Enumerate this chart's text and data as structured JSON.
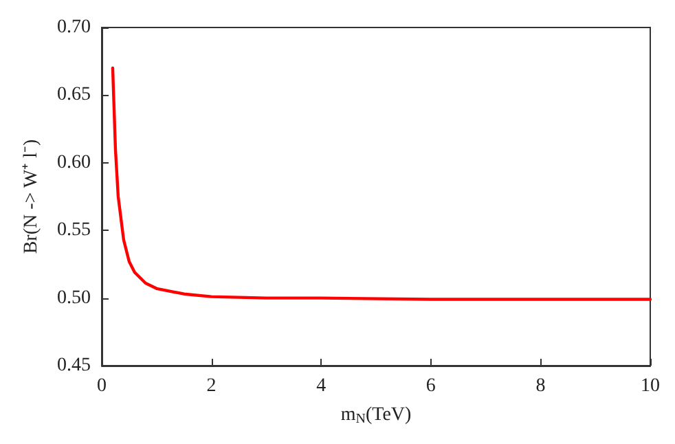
{
  "chart_data": {
    "type": "line",
    "xlabel": "m$_{N}$(TeV)",
    "ylabel": "Br(N -> W⁺ l⁻)",
    "x": [
      0.2,
      0.25,
      0.3,
      0.4,
      0.5,
      0.6,
      0.8,
      1,
      1.5,
      2,
      3,
      4,
      6,
      8,
      10
    ],
    "series": [
      {
        "color": "#ff0000",
        "values": [
          0.67,
          0.61,
          0.575,
          0.543,
          0.527,
          0.519,
          0.511,
          0.507,
          0.503,
          0.501,
          0.5,
          0.5,
          0.499,
          0.499,
          0.499
        ]
      }
    ],
    "xlim": [
      0,
      10
    ],
    "xticks": [
      0,
      2,
      4,
      6,
      8,
      10
    ],
    "ylim": [
      0.45,
      0.7
    ],
    "yticks": [
      0.45,
      {
        "value": 0.5,
        "label": "0.50"
      },
      0.55,
      {
        "value": 0.6,
        "label": "0.60"
      },
      0.65,
      {
        "value": 0.7,
        "label": "0.70"
      }
    ],
    "grid": false,
    "marker": "none",
    "line_style": "solid"
  }
}
